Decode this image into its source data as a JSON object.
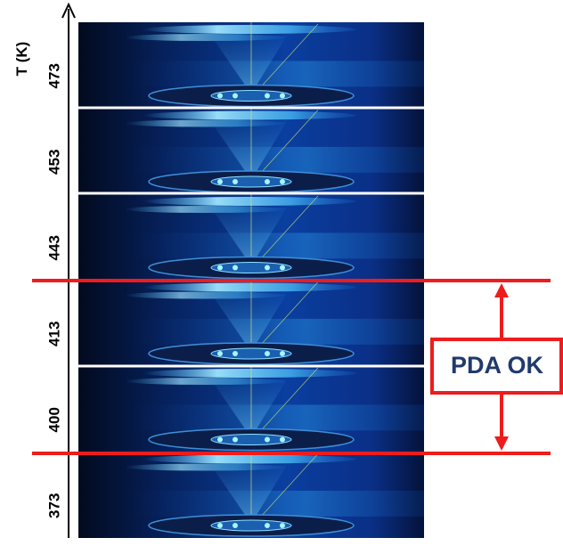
{
  "axis_label": "T (K)",
  "panels": [
    {
      "label": "473"
    },
    {
      "label": "453"
    },
    {
      "label": "443"
    },
    {
      "label": "413"
    },
    {
      "label": "400"
    },
    {
      "label": "373"
    }
  ],
  "annotation": "PDA OK"
}
